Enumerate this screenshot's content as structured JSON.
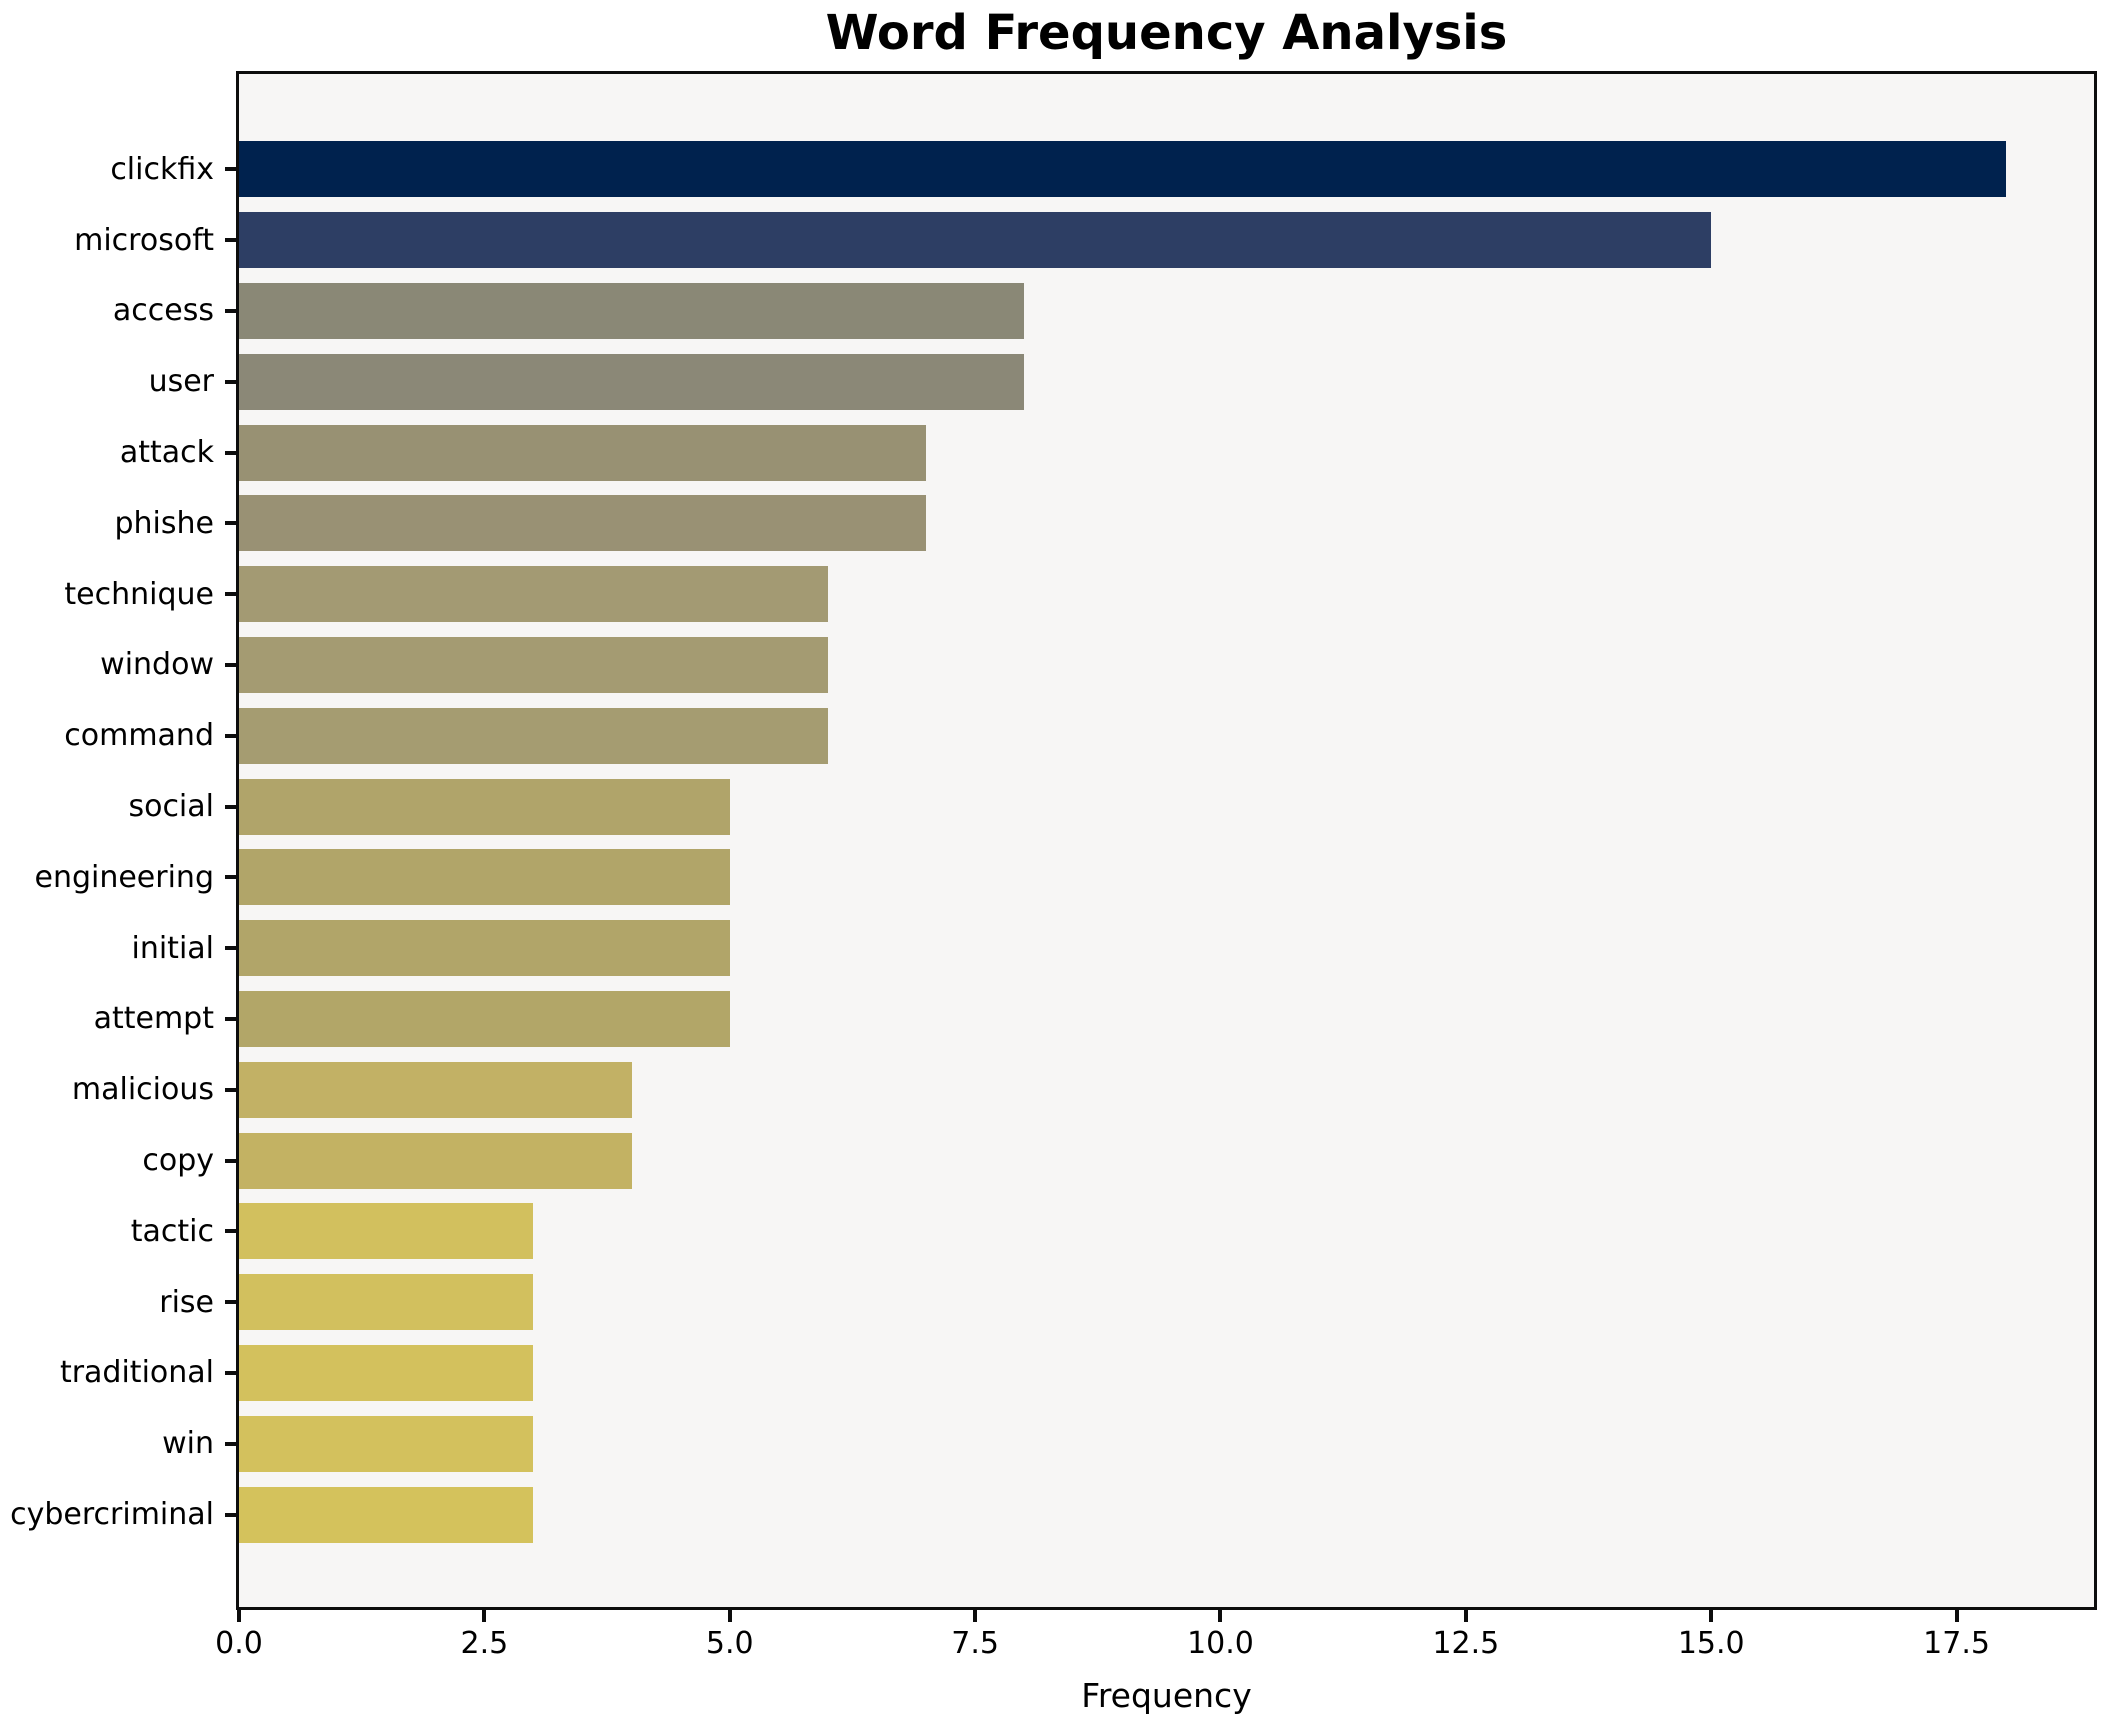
{
  "title": "Word Frequency Analysis",
  "chart_data": {
    "type": "bar",
    "orientation": "horizontal",
    "title": "Word Frequency Analysis",
    "xlabel": "Frequency",
    "ylabel": "",
    "categories": [
      "clickfix",
      "microsoft",
      "access",
      "user",
      "attack",
      "phishe",
      "technique",
      "window",
      "command",
      "social",
      "engineering",
      "initial",
      "attempt",
      "malicious",
      "copy",
      "tactic",
      "rise",
      "traditional",
      "win",
      "cybercriminal"
    ],
    "values": [
      18,
      15,
      8,
      8,
      7,
      7,
      6,
      6,
      6,
      5,
      5,
      5,
      5,
      4,
      4,
      3,
      3,
      3,
      3,
      3
    ],
    "bar_colors": [
      "#00224e",
      "#2d3e64",
      "#8a8876",
      "#8b8877",
      "#989173",
      "#999174",
      "#a39a73",
      "#a49b72",
      "#a59c71",
      "#b0a46a",
      "#b1a569",
      "#b1a569",
      "#b2a668",
      "#c2b165",
      "#c3b263",
      "#d2c05e",
      "#d2c05e",
      "#d3c15d",
      "#d3c15d",
      "#d4c25c"
    ],
    "xlim": [
      0,
      18.9
    ],
    "xticks": [
      0,
      2.5,
      5,
      7.5,
      10,
      12.5,
      15,
      17.5
    ],
    "xtick_labels": [
      "0.0",
      "2.5",
      "5.0",
      "7.5",
      "10.0",
      "12.5",
      "15.0",
      "17.5"
    ],
    "grid": false,
    "legend": null,
    "plot_bg": "#f7f6f5",
    "figure_bg": "#ffffff",
    "spine_color": "#0d0d0d"
  }
}
